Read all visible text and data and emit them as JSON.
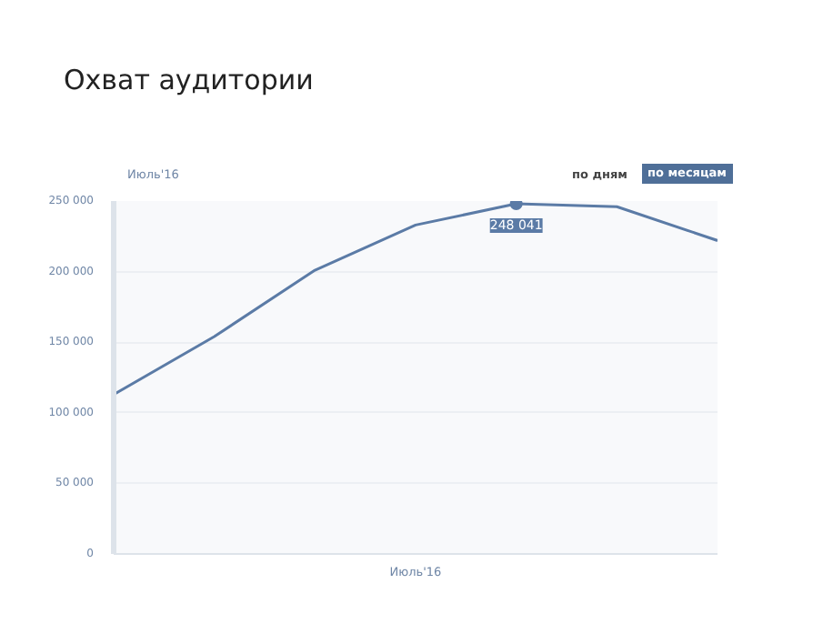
{
  "chart_data": {
    "type": "line",
    "title": "Охват аудитории",
    "xlabel": "Июль'16",
    "categories": [
      null,
      null,
      null,
      null,
      null,
      null,
      null
    ],
    "series": [
      {
        "color": "#5b7ba6",
        "values": [
          113000,
          154000,
          201000,
          233000,
          248041,
          246000,
          222000
        ],
        "value_labels": [
          null,
          null,
          null,
          null,
          "248 041",
          null,
          null
        ]
      }
    ],
    "ylim": [
      0,
      250000
    ],
    "yticks": [
      {
        "value": 0,
        "label": "0"
      },
      {
        "value": 50000,
        "label": "50 000"
      },
      {
        "value": 100000,
        "label": "100 000"
      },
      {
        "value": 150000,
        "label": "150 000"
      },
      {
        "value": 200000,
        "label": "200 000"
      },
      {
        "value": 250000,
        "label": "250 000"
      }
    ],
    "grid": "y",
    "line_style": "solid",
    "annotations": [
      "Июль'16",
      "по дням",
      "по месяцам"
    ]
  }
}
